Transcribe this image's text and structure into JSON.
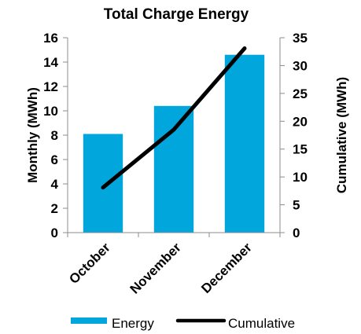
{
  "chart_data": {
    "type": "bar",
    "title": "Total Charge Energy",
    "categories": [
      "October",
      "November",
      "December"
    ],
    "series": [
      {
        "name": "Energy",
        "type": "bar",
        "axis": "left",
        "color": "#00a6dc",
        "values": [
          8.1,
          10.4,
          14.6
        ]
      },
      {
        "name": "Cumulative",
        "type": "line",
        "axis": "right",
        "color": "#000000",
        "values": [
          8.1,
          18.5,
          33.1
        ]
      }
    ],
    "ylabel": "Monthly  (MWh)",
    "ylabel_right": "Cumulative (MWh)",
    "ylim": [
      0,
      16
    ],
    "ylim_right": [
      0,
      35
    ],
    "yticks": [
      0,
      2,
      4,
      6,
      8,
      10,
      12,
      14,
      16
    ],
    "yticks_right": [
      0,
      5,
      10,
      15,
      20,
      25,
      30,
      35
    ],
    "grid": false,
    "legend_position": "bottom"
  }
}
